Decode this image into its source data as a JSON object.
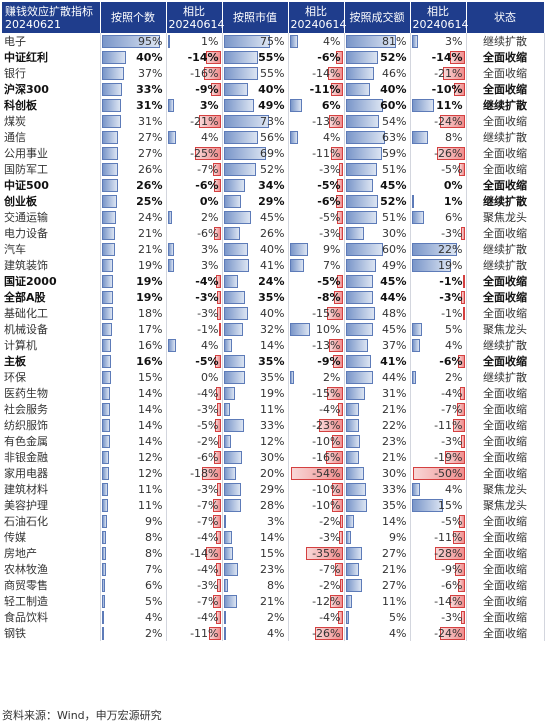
{
  "headers": [
    "赚钱效应扩散指标\n20240621",
    "按照个数",
    "相比\n20240614",
    "按照市值",
    "相比\n20240614",
    "按照成交额",
    "相比\n20240614",
    "状态"
  ],
  "source_note": "资料来源：Wind，申万宏源研究",
  "chart_data": {
    "type": "table",
    "columns": [
      "赚钱效应扩散指标 20240621",
      "按照个数",
      "相比 20240614",
      "按照市值",
      "相比 20240614",
      "按照成交额",
      "相比 20240614",
      "状态"
    ],
    "colors": {
      "positive_bar": "#7a96c9",
      "negative_bar": "#f08d8d",
      "header": "#1f3d8c"
    },
    "rows": [
      {
        "name": "电子",
        "bold": false,
        "count": "95%",
        "count_chg": "1%",
        "mcap": "75%",
        "mcap_chg": "4%",
        "turnover": "81%",
        "turnover_chg": "3%",
        "status": "继续扩散"
      },
      {
        "name": "中证红利",
        "bold": true,
        "count": "40%",
        "count_chg": "-14%",
        "mcap": "55%",
        "mcap_chg": "-6%",
        "turnover": "52%",
        "turnover_chg": "-14%",
        "status": "全面收缩"
      },
      {
        "name": "银行",
        "bold": false,
        "count": "37%",
        "count_chg": "-16%",
        "mcap": "55%",
        "mcap_chg": "-14%",
        "turnover": "46%",
        "turnover_chg": "-21%",
        "status": "全面收缩"
      },
      {
        "name": "沪深300",
        "bold": true,
        "count": "33%",
        "count_chg": "-9%",
        "mcap": "40%",
        "mcap_chg": "-11%",
        "turnover": "40%",
        "turnover_chg": "-10%",
        "status": "全面收缩"
      },
      {
        "name": "科创板",
        "bold": true,
        "count": "31%",
        "count_chg": "3%",
        "mcap": "49%",
        "mcap_chg": "6%",
        "turnover": "60%",
        "turnover_chg": "11%",
        "status": "继续扩散"
      },
      {
        "name": "煤炭",
        "bold": false,
        "count": "31%",
        "count_chg": "-21%",
        "mcap": "73%",
        "mcap_chg": "-13%",
        "turnover": "54%",
        "turnover_chg": "-24%",
        "status": "全面收缩"
      },
      {
        "name": "通信",
        "bold": false,
        "count": "27%",
        "count_chg": "4%",
        "mcap": "56%",
        "mcap_chg": "4%",
        "turnover": "63%",
        "turnover_chg": "8%",
        "status": "继续扩散"
      },
      {
        "name": "公用事业",
        "bold": false,
        "count": "27%",
        "count_chg": "-25%",
        "mcap": "69%",
        "mcap_chg": "-11%",
        "turnover": "59%",
        "turnover_chg": "-26%",
        "status": "全面收缩"
      },
      {
        "name": "国防军工",
        "bold": false,
        "count": "26%",
        "count_chg": "-7%",
        "mcap": "52%",
        "mcap_chg": "-3%",
        "turnover": "51%",
        "turnover_chg": "-5%",
        "status": "全面收缩"
      },
      {
        "name": "中证500",
        "bold": true,
        "count": "26%",
        "count_chg": "-6%",
        "mcap": "34%",
        "mcap_chg": "-5%",
        "turnover": "45%",
        "turnover_chg": "0%",
        "status": "全面收缩"
      },
      {
        "name": "创业板",
        "bold": true,
        "count": "25%",
        "count_chg": "0%",
        "mcap": "29%",
        "mcap_chg": "-6%",
        "turnover": "52%",
        "turnover_chg": "1%",
        "status": "继续扩散"
      },
      {
        "name": "交通运输",
        "bold": false,
        "count": "24%",
        "count_chg": "2%",
        "mcap": "45%",
        "mcap_chg": "-5%",
        "turnover": "51%",
        "turnover_chg": "6%",
        "status": "聚焦龙头"
      },
      {
        "name": "电力设备",
        "bold": false,
        "count": "21%",
        "count_chg": "-6%",
        "mcap": "26%",
        "mcap_chg": "-3%",
        "turnover": "30%",
        "turnover_chg": "-3%",
        "status": "全面收缩"
      },
      {
        "name": "汽车",
        "bold": false,
        "count": "21%",
        "count_chg": "3%",
        "mcap": "40%",
        "mcap_chg": "9%",
        "turnover": "60%",
        "turnover_chg": "22%",
        "status": "继续扩散"
      },
      {
        "name": "建筑装饰",
        "bold": false,
        "count": "19%",
        "count_chg": "3%",
        "mcap": "41%",
        "mcap_chg": "7%",
        "turnover": "49%",
        "turnover_chg": "19%",
        "status": "继续扩散"
      },
      {
        "name": "国证2000",
        "bold": true,
        "count": "19%",
        "count_chg": "-4%",
        "mcap": "24%",
        "mcap_chg": "-5%",
        "turnover": "45%",
        "turnover_chg": "-1%",
        "status": "全面收缩"
      },
      {
        "name": "全部A股",
        "bold": true,
        "count": "19%",
        "count_chg": "-3%",
        "mcap": "35%",
        "mcap_chg": "-8%",
        "turnover": "44%",
        "turnover_chg": "-3%",
        "status": "全面收缩"
      },
      {
        "name": "基础化工",
        "bold": false,
        "count": "18%",
        "count_chg": "-3%",
        "mcap": "40%",
        "mcap_chg": "-15%",
        "turnover": "48%",
        "turnover_chg": "-1%",
        "status": "全面收缩"
      },
      {
        "name": "机械设备",
        "bold": false,
        "count": "17%",
        "count_chg": "-1%",
        "mcap": "32%",
        "mcap_chg": "10%",
        "turnover": "45%",
        "turnover_chg": "5%",
        "status": "聚焦龙头"
      },
      {
        "name": "计算机",
        "bold": false,
        "count": "16%",
        "count_chg": "4%",
        "mcap": "14%",
        "mcap_chg": "-13%",
        "turnover": "37%",
        "turnover_chg": "4%",
        "status": "继续扩散"
      },
      {
        "name": "主板",
        "bold": true,
        "count": "16%",
        "count_chg": "-5%",
        "mcap": "35%",
        "mcap_chg": "-9%",
        "turnover": "41%",
        "turnover_chg": "-6%",
        "status": "全面收缩"
      },
      {
        "name": "环保",
        "bold": false,
        "count": "15%",
        "count_chg": "0%",
        "mcap": "35%",
        "mcap_chg": "2%",
        "turnover": "44%",
        "turnover_chg": "2%",
        "status": "继续扩散"
      },
      {
        "name": "医药生物",
        "bold": false,
        "count": "14%",
        "count_chg": "-4%",
        "mcap": "19%",
        "mcap_chg": "-15%",
        "turnover": "31%",
        "turnover_chg": "-4%",
        "status": "全面收缩"
      },
      {
        "name": "社会服务",
        "bold": false,
        "count": "14%",
        "count_chg": "-3%",
        "mcap": "11%",
        "mcap_chg": "-4%",
        "turnover": "21%",
        "turnover_chg": "-7%",
        "status": "全面收缩"
      },
      {
        "name": "纺织服饰",
        "bold": false,
        "count": "14%",
        "count_chg": "-5%",
        "mcap": "33%",
        "mcap_chg": "-23%",
        "turnover": "22%",
        "turnover_chg": "-11%",
        "status": "全面收缩"
      },
      {
        "name": "有色金属",
        "bold": false,
        "count": "14%",
        "count_chg": "-2%",
        "mcap": "12%",
        "mcap_chg": "-10%",
        "turnover": "23%",
        "turnover_chg": "-3%",
        "status": "全面收缩"
      },
      {
        "name": "非银金融",
        "bold": false,
        "count": "12%",
        "count_chg": "-6%",
        "mcap": "30%",
        "mcap_chg": "-16%",
        "turnover": "21%",
        "turnover_chg": "-19%",
        "status": "全面收缩"
      },
      {
        "name": "家用电器",
        "bold": false,
        "count": "12%",
        "count_chg": "-18%",
        "mcap": "20%",
        "mcap_chg": "-54%",
        "turnover": "30%",
        "turnover_chg": "-50%",
        "status": "全面收缩"
      },
      {
        "name": "建筑材料",
        "bold": false,
        "count": "11%",
        "count_chg": "-3%",
        "mcap": "29%",
        "mcap_chg": "-10%",
        "turnover": "33%",
        "turnover_chg": "4%",
        "status": "聚焦龙头"
      },
      {
        "name": "美容护理",
        "bold": false,
        "count": "11%",
        "count_chg": "-7%",
        "mcap": "28%",
        "mcap_chg": "-10%",
        "turnover": "35%",
        "turnover_chg": "15%",
        "status": "聚焦龙头"
      },
      {
        "name": "石油石化",
        "bold": false,
        "count": "9%",
        "count_chg": "-7%",
        "mcap": "3%",
        "mcap_chg": "-2%",
        "turnover": "14%",
        "turnover_chg": "-5%",
        "status": "全面收缩"
      },
      {
        "name": "传媒",
        "bold": false,
        "count": "8%",
        "count_chg": "-4%",
        "mcap": "14%",
        "mcap_chg": "-3%",
        "turnover": "9%",
        "turnover_chg": "-11%",
        "status": "全面收缩"
      },
      {
        "name": "房地产",
        "bold": false,
        "count": "8%",
        "count_chg": "-14%",
        "mcap": "15%",
        "mcap_chg": "-35%",
        "turnover": "27%",
        "turnover_chg": "-28%",
        "status": "全面收缩"
      },
      {
        "name": "农林牧渔",
        "bold": false,
        "count": "7%",
        "count_chg": "-4%",
        "mcap": "23%",
        "mcap_chg": "-7%",
        "turnover": "21%",
        "turnover_chg": "-9%",
        "status": "全面收缩"
      },
      {
        "name": "商贸零售",
        "bold": false,
        "count": "6%",
        "count_chg": "-3%",
        "mcap": "8%",
        "mcap_chg": "-2%",
        "turnover": "27%",
        "turnover_chg": "-6%",
        "status": "全面收缩"
      },
      {
        "name": "轻工制造",
        "bold": false,
        "count": "5%",
        "count_chg": "-7%",
        "mcap": "21%",
        "mcap_chg": "-12%",
        "turnover": "11%",
        "turnover_chg": "-14%",
        "status": "全面收缩"
      },
      {
        "name": "食品饮料",
        "bold": false,
        "count": "4%",
        "count_chg": "-4%",
        "mcap": "2%",
        "mcap_chg": "-4%",
        "turnover": "5%",
        "turnover_chg": "-3%",
        "status": "全面收缩"
      },
      {
        "name": "钢铁",
        "bold": false,
        "count": "2%",
        "count_chg": "-11%",
        "mcap": "4%",
        "mcap_chg": "-26%",
        "turnover": "4%",
        "turnover_chg": "-24%",
        "status": "全面收缩"
      }
    ]
  }
}
